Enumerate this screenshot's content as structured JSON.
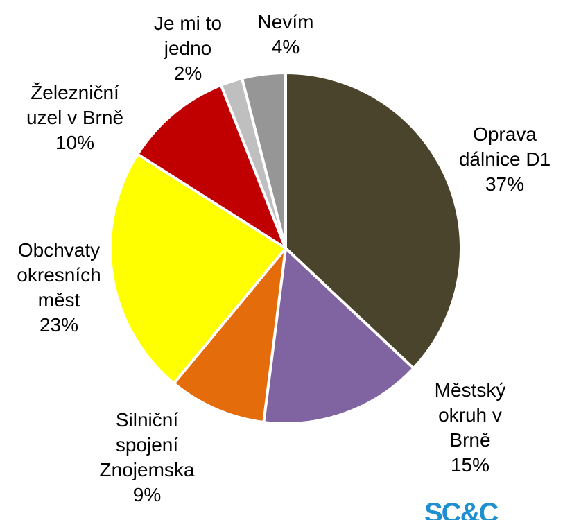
{
  "chart_data": {
    "type": "pie",
    "categories": [
      "Oprava dálnice D1",
      "Městský okruh v Brně",
      "Silniční spojení Znojemska",
      "Obchvaty okresních měst",
      "Železniční uzel v Brně",
      "Je mi to jedno",
      "Nevím"
    ],
    "values": [
      37,
      15,
      9,
      23,
      10,
      2,
      4
    ],
    "value_labels": [
      "37%",
      "15%",
      "9%",
      "23%",
      "10%",
      "2%",
      "4%"
    ],
    "colors": [
      "#4a442d",
      "#8064a2",
      "#e46c0a",
      "#ffff00",
      "#c00000",
      "#bfbfbf",
      "#969696"
    ]
  },
  "logo": "SC&C"
}
